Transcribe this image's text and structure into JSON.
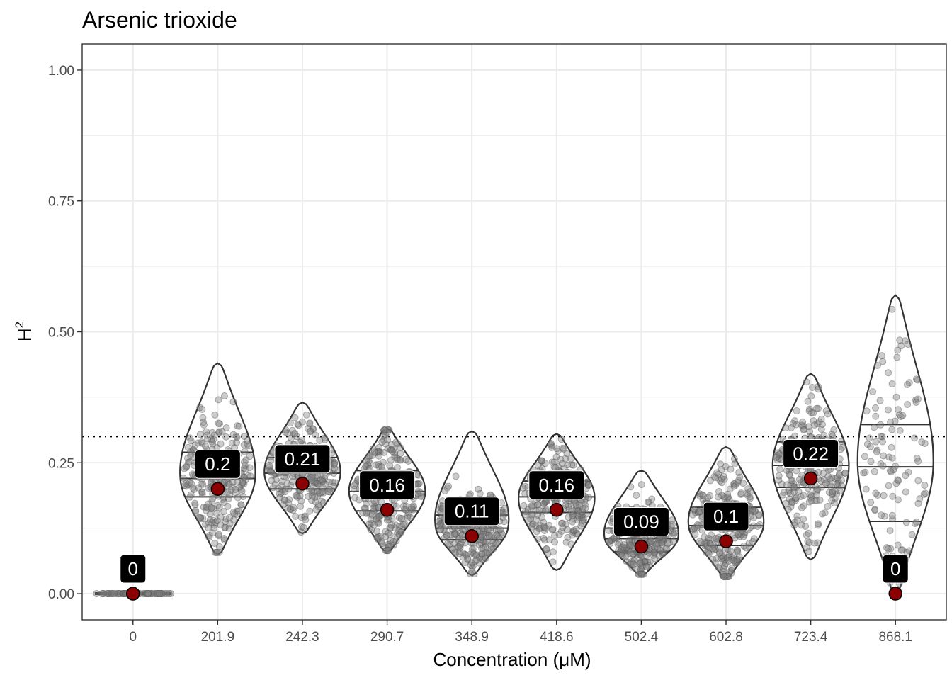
{
  "chart_data": {
    "type": "violin",
    "title": "Arsenic trioxide",
    "xlabel": "Concentration (μM)",
    "ylabel": "H",
    "ylabel_sup": "2",
    "ylim": [
      -0.05,
      1.05
    ],
    "yticks": [
      0.0,
      0.25,
      0.5,
      0.75,
      1.0
    ],
    "ytick_labels": [
      "0.00",
      "0.25",
      "0.50",
      "0.75",
      "1.00"
    ],
    "reference_line": 0.3,
    "grid": true,
    "categories": [
      "0",
      "201.9",
      "242.3",
      "290.7",
      "348.9",
      "418.6",
      "502.4",
      "602.8",
      "723.4",
      "868.1"
    ],
    "point_estimates": [
      0.0,
      0.2,
      0.21,
      0.16,
      0.11,
      0.16,
      0.09,
      0.1,
      0.22,
      0.0
    ],
    "point_labels": [
      "0",
      "0.2",
      "0.21",
      "0.16",
      "0.11",
      "0.16",
      "0.09",
      "0.1",
      "0.22",
      "0"
    ],
    "distributions": [
      {
        "min": 0.0,
        "max": 0.0,
        "q1": 0.0,
        "median": 0.0,
        "q3": 0.0
      },
      {
        "min": 0.075,
        "max": 0.44,
        "q1": 0.185,
        "median": 0.22,
        "q3": 0.27
      },
      {
        "min": 0.115,
        "max": 0.365,
        "q1": 0.2,
        "median": 0.23,
        "q3": 0.26
      },
      {
        "min": 0.08,
        "max": 0.315,
        "q1": 0.158,
        "median": 0.195,
        "q3": 0.235
      },
      {
        "min": 0.035,
        "max": 0.31,
        "q1": 0.103,
        "median": 0.125,
        "q3": 0.15
      },
      {
        "min": 0.045,
        "max": 0.305,
        "q1": 0.155,
        "median": 0.185,
        "q3": 0.215
      },
      {
        "min": 0.035,
        "max": 0.235,
        "q1": 0.08,
        "median": 0.105,
        "q3": 0.125
      },
      {
        "min": 0.03,
        "max": 0.28,
        "q1": 0.092,
        "median": 0.13,
        "q3": 0.165
      },
      {
        "min": 0.065,
        "max": 0.42,
        "q1": 0.203,
        "median": 0.245,
        "q3": 0.29
      },
      {
        "min": 0.0,
        "max": 0.57,
        "q1": 0.138,
        "median": 0.242,
        "q3": 0.323
      }
    ],
    "colors": {
      "point": "#8b0000",
      "label_bg": "#000000",
      "label_text": "#ffffff",
      "jitter": "#808080",
      "outline": "#333333",
      "grid": "#ebebeb"
    }
  }
}
